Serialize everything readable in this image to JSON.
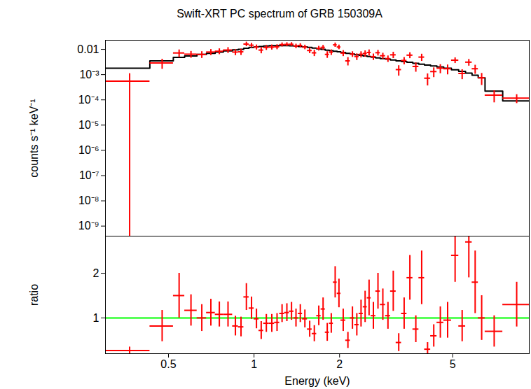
{
  "chart_data": [
    {
      "type": "scatter",
      "title": "Swift-XRT PC spectrum of GRB 150309A",
      "y_label": "counts s⁻¹ keV⁻¹",
      "log": true,
      "tick_labels": "y",
      "color": "#ff0000",
      "model_color": "#000000",
      "xlim": [
        0.3,
        9.3
      ],
      "ylim": [
        4e-10,
        0.023
      ],
      "yticks": [
        0.01,
        {
          "value": 0.001,
          "label": "10⁻³"
        },
        {
          "value": 0.0001,
          "label": "10⁻⁴"
        },
        {
          "value": 1e-05,
          "label": "10⁻⁵"
        },
        {
          "value": 1e-06,
          "label": "10⁻⁶"
        },
        {
          "value": 1e-07,
          "label": "10⁻⁷"
        },
        {
          "value": 1e-08,
          "label": "10⁻⁸"
        },
        {
          "value": 1e-09,
          "label": "10⁻⁹"
        }
      ],
      "x_lo": [
        0.3,
        0.43,
        0.52,
        0.57,
        0.63,
        0.68,
        0.73,
        0.78,
        0.84,
        0.88,
        0.92,
        0.96,
        1.0,
        1.04,
        1.08,
        1.13,
        1.18,
        1.23,
        1.28,
        1.33,
        1.38,
        1.43,
        1.48,
        1.54,
        1.6,
        1.66,
        1.72,
        1.78,
        1.84,
        1.9,
        1.96,
        2.02,
        2.1,
        2.18,
        2.26,
        2.34,
        2.42,
        2.5,
        2.58,
        2.68,
        2.78,
        2.9,
        3.02,
        3.16,
        3.3,
        3.45,
        3.62,
        3.8,
        3.98,
        4.18,
        4.4,
        4.65,
        4.95,
        5.25,
        5.55,
        5.85,
        6.15,
        6.5,
        7.5
      ],
      "x_hi": [
        0.43,
        0.52,
        0.57,
        0.63,
        0.68,
        0.73,
        0.78,
        0.84,
        0.88,
        0.92,
        0.96,
        1.0,
        1.04,
        1.08,
        1.13,
        1.18,
        1.23,
        1.28,
        1.33,
        1.38,
        1.43,
        1.48,
        1.54,
        1.6,
        1.66,
        1.72,
        1.78,
        1.84,
        1.9,
        1.96,
        2.02,
        2.1,
        2.18,
        2.26,
        2.34,
        2.42,
        2.5,
        2.58,
        2.68,
        2.78,
        2.9,
        3.02,
        3.16,
        3.3,
        3.45,
        3.62,
        3.8,
        3.98,
        4.18,
        4.4,
        4.65,
        4.95,
        5.25,
        5.55,
        5.85,
        6.15,
        6.5,
        7.5,
        9.3
      ],
      "values": [
        0.00055,
        0.00287,
        0.0072,
        0.00644,
        0.0063,
        0.00784,
        0.00842,
        0.0094,
        0.00779,
        0.008,
        0.0162,
        0.0146,
        0.0123,
        0.00936,
        0.0119,
        0.0123,
        0.0126,
        0.0154,
        0.0157,
        0.0159,
        0.0135,
        0.0143,
        0.0123,
        0.009,
        0.00728,
        0.011,
        0.012,
        0.00632,
        0.00774,
        0.0151,
        0.0124,
        0.00713,
        0.0035,
        0.0065,
        0.00519,
        0.00638,
        0.00688,
        0.00754,
        0.00515,
        0.00736,
        0.00559,
        0.00431,
        0.00608,
        0.00158,
        0.00363,
        0.00589,
        0.0021,
        0.00494,
        0.00072,
        0.00132,
        0.0018,
        0.00171,
        0.00372,
        0.00111,
        0.00311,
        0.00171,
        0.00075,
        0.000154,
        0.000117
      ],
      "errors": [
        0.00055,
        0.00123,
        0.0024,
        0.00193,
        0.00189,
        0.0021,
        0.00218,
        0.00244,
        0.00209,
        0.0022,
        0.0033,
        0.003,
        0.00275,
        0.0026,
        0.0027,
        0.0028,
        0.0028,
        0.0028,
        0.0028,
        0.00276,
        0.0027,
        0.0026,
        0.0025,
        0.00216,
        0.00202,
        0.00231,
        0.0025,
        0.00186,
        0.00194,
        0.00294,
        0.00256,
        0.00188,
        0.00126,
        0.00163,
        0.00153,
        0.00174,
        0.00193,
        0.00208,
        0.00147,
        0.00184,
        0.00151,
        0.00123,
        0.00171,
        0.0007,
        0.00116,
        0.00155,
        0.00084,
        0.00156,
        0.00036,
        0.00055,
        0.0007,
        0.00072,
        0.00093,
        0.00047,
        0.00092,
        0.000665,
        0.000375,
        7.7e-05,
        4.5e-05
      ],
      "model_values": [
        0.0018,
        0.0035,
        0.0048,
        0.0055,
        0.0063,
        0.007,
        0.0078,
        0.0087,
        0.0095,
        0.01,
        0.011,
        0.012,
        0.0125,
        0.013,
        0.0135,
        0.014,
        0.014,
        0.014,
        0.014,
        0.0138,
        0.0135,
        0.013,
        0.0125,
        0.012,
        0.0112,
        0.0105,
        0.01,
        0.0093,
        0.0088,
        0.0084,
        0.008,
        0.0075,
        0.007,
        0.0065,
        0.0061,
        0.0058,
        0.0055,
        0.0052,
        0.0049,
        0.0046,
        0.0043,
        0.0041,
        0.0038,
        0.0035,
        0.0033,
        0.0031,
        0.0028,
        0.0026,
        0.0024,
        0.0022,
        0.002,
        0.0018,
        0.00155,
        0.00135,
        0.00115,
        0.00095,
        0.00075,
        0.00022,
        9e-05
      ]
    },
    {
      "type": "scatter",
      "x_label": "Energy (keV)",
      "y_label": "ratio",
      "log": "x",
      "color": "#ff0000",
      "reference_line": 1,
      "reference_color": "#00ff00",
      "xlim": [
        0.3,
        9.3
      ],
      "ylim": [
        0.2,
        2.83
      ],
      "xticks": [
        0.5,
        1,
        2,
        5
      ],
      "yticks": [
        1,
        2
      ],
      "x_lo": [
        0.3,
        0.43,
        0.52,
        0.57,
        0.63,
        0.68,
        0.73,
        0.78,
        0.84,
        0.88,
        0.92,
        0.96,
        1.0,
        1.04,
        1.08,
        1.13,
        1.18,
        1.23,
        1.28,
        1.33,
        1.38,
        1.43,
        1.48,
        1.54,
        1.6,
        1.66,
        1.72,
        1.78,
        1.84,
        1.9,
        1.96,
        2.02,
        2.1,
        2.18,
        2.26,
        2.34,
        2.42,
        2.5,
        2.58,
        2.68,
        2.78,
        2.9,
        3.02,
        3.16,
        3.3,
        3.45,
        3.62,
        3.8,
        3.98,
        4.18,
        4.4,
        4.65,
        4.95,
        5.25,
        5.55,
        5.85,
        6.15,
        6.5,
        7.5
      ],
      "x_hi": [
        0.43,
        0.52,
        0.57,
        0.63,
        0.68,
        0.73,
        0.78,
        0.84,
        0.88,
        0.92,
        0.96,
        1.0,
        1.04,
        1.08,
        1.13,
        1.18,
        1.23,
        1.28,
        1.33,
        1.38,
        1.43,
        1.48,
        1.54,
        1.6,
        1.66,
        1.72,
        1.78,
        1.84,
        1.9,
        1.96,
        2.02,
        2.1,
        2.18,
        2.26,
        2.34,
        2.42,
        2.5,
        2.58,
        2.68,
        2.78,
        2.9,
        3.02,
        3.16,
        3.3,
        3.45,
        3.62,
        3.8,
        3.98,
        4.18,
        4.4,
        4.65,
        4.95,
        5.25,
        5.55,
        5.85,
        6.15,
        6.5,
        7.5,
        9.3
      ],
      "values": [
        0.27,
        0.82,
        1.5,
        1.17,
        1.0,
        1.12,
        1.08,
        1.08,
        0.82,
        0.8,
        1.47,
        1.22,
        0.98,
        0.72,
        0.88,
        0.88,
        0.9,
        1.1,
        1.12,
        1.15,
        1.0,
        1.1,
        0.98,
        0.75,
        0.65,
        1.05,
        1.2,
        0.68,
        0.88,
        1.8,
        1.55,
        0.95,
        0.5,
        1.0,
        0.85,
        1.1,
        1.25,
        1.45,
        1.05,
        1.6,
        1.3,
        1.05,
        1.6,
        0.45,
        1.1,
        1.9,
        0.75,
        1.9,
        0.3,
        0.6,
        0.9,
        0.95,
        2.4,
        0.82,
        2.7,
        1.8,
        1.0,
        0.7,
        1.3
      ],
      "errors": [
        0.08,
        0.35,
        0.5,
        0.35,
        0.3,
        0.3,
        0.28,
        0.28,
        0.22,
        0.22,
        0.3,
        0.25,
        0.22,
        0.2,
        0.2,
        0.2,
        0.2,
        0.2,
        0.2,
        0.2,
        0.2,
        0.2,
        0.2,
        0.18,
        0.18,
        0.22,
        0.25,
        0.2,
        0.22,
        0.35,
        0.32,
        0.25,
        0.18,
        0.25,
        0.25,
        0.3,
        0.35,
        0.4,
        0.3,
        0.4,
        0.35,
        0.3,
        0.45,
        0.2,
        0.35,
        0.5,
        0.3,
        0.6,
        0.15,
        0.25,
        0.35,
        0.4,
        0.6,
        0.35,
        0.8,
        0.7,
        0.5,
        0.35,
        0.5
      ]
    }
  ]
}
